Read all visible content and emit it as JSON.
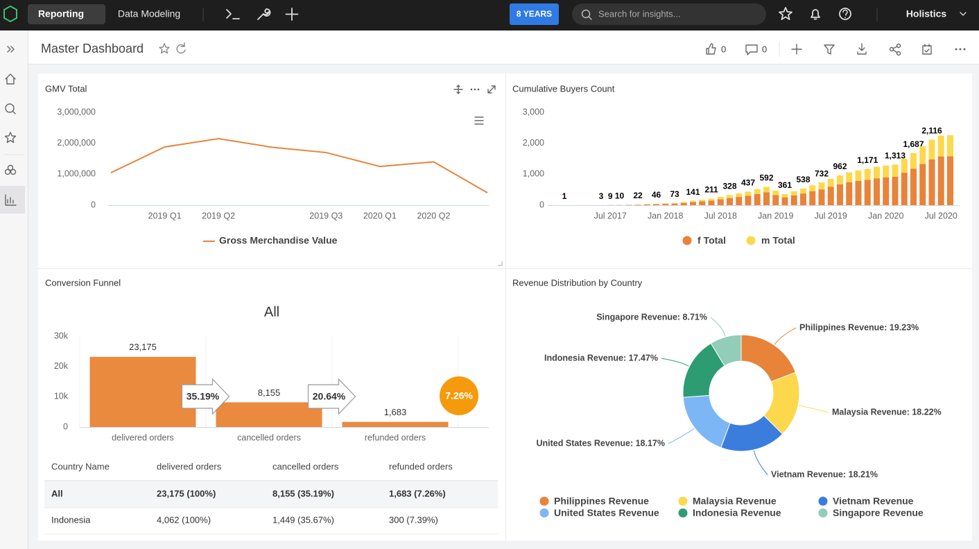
{
  "nav": {
    "tabs": [
      "Reporting",
      "Data Modeling"
    ],
    "badge": "8 YEARS",
    "search_placeholder": "Search for insights...",
    "org": "Holistics"
  },
  "header": {
    "title": "Master Dashboard",
    "likes": 0,
    "comments": 0
  },
  "chart_data": [
    {
      "type": "line",
      "title": "GMV Total",
      "categories": [
        null,
        "2019 Q1",
        "2019 Q2",
        null,
        "2019 Q3",
        "2020 Q1",
        "2020 Q2",
        null
      ],
      "series": [
        {
          "name": "Gross Merchandise Value",
          "color": "#e8833a",
          "values": [
            1050000,
            1880000,
            2150000,
            1870000,
            1700000,
            1250000,
            1400000,
            400000
          ]
        }
      ],
      "ylim": [
        0,
        3000000
      ],
      "yticks": [
        0,
        {
          "value": 1000000,
          "label": "1,000,000"
        },
        {
          "value": 2000000,
          "label": "2,000,000"
        },
        {
          "value": 3000000,
          "label": "3,000,000"
        }
      ],
      "grid": false
    },
    {
      "type": "bar",
      "stacked": true,
      "title": "Cumulative Buyers Count",
      "categories": [
        null,
        null,
        null,
        null,
        null,
        "Jul 2017",
        null,
        null,
        null,
        null,
        null,
        "Jan 2018",
        null,
        null,
        null,
        null,
        null,
        "Jul 2018",
        null,
        null,
        null,
        null,
        null,
        "Jan 2019",
        null,
        null,
        null,
        null,
        null,
        "Jul 2019",
        null,
        null,
        null,
        null,
        null,
        "Jan 2020",
        null,
        null,
        null,
        null,
        null,
        "Jul 2020",
        null
      ],
      "series": [
        {
          "name": "f Total",
          "color": "#e8833a",
          "values": [
            1,
            1,
            1,
            1,
            2,
            6,
            7,
            10,
            15,
            23,
            32,
            42,
            51,
            73,
            99,
            122,
            148,
            189,
            230,
            266,
            306,
            360,
            414,
            329,
            253,
            315,
            377,
            448,
            512,
            595,
            673,
            742,
            784,
            820,
            868,
            896,
            919,
            1050,
            1181,
            1330,
            1481,
            1575,
            1582
          ]
        },
        {
          "name": "m Total",
          "color": "#fdd84d",
          "values": [
            0,
            0,
            1,
            1,
            1,
            3,
            3,
            5,
            7,
            10,
            14,
            18,
            22,
            32,
            42,
            53,
            63,
            81,
            98,
            114,
            131,
            155,
            178,
            141,
            108,
            135,
            161,
            192,
            220,
            255,
            289,
            318,
            336,
            351,
            372,
            384,
            394,
            450,
            506,
            570,
            635,
            675,
            678
          ]
        }
      ],
      "stack_labels": [
        "1",
        null,
        null,
        null,
        "3",
        "9",
        "10",
        null,
        "22",
        null,
        "46",
        null,
        "73",
        null,
        "141",
        null,
        "211",
        null,
        "328",
        null,
        "437",
        null,
        "592",
        null,
        "361",
        null,
        "538",
        null,
        "732",
        null,
        "962",
        null,
        null,
        "1,171",
        null,
        null,
        "1,313",
        null,
        "1,687",
        null,
        "2,116",
        null,
        null
      ],
      "ylim": [
        0,
        3000
      ],
      "yticks": [
        0,
        {
          "value": 1000,
          "label": "1,000"
        },
        {
          "value": 2000,
          "label": "2,000"
        },
        {
          "value": 3000,
          "label": "3,000"
        }
      ],
      "grid": false
    },
    {
      "type": "bar",
      "title": "Conversion Funnel",
      "subtitle": "All",
      "categories": [
        "delivered orders",
        "cancelled orders",
        "refunded orders"
      ],
      "values": [
        23175,
        8155,
        1683
      ],
      "value_labels": [
        "23,175",
        "8,155",
        "1,683"
      ],
      "conversion_labels": [
        "35.19%",
        "20.64%",
        "7.26%"
      ],
      "color": "#ea8a3e",
      "ylim": [
        0,
        30000
      ],
      "yticks": [
        0,
        {
          "value": 10000,
          "label": "10k"
        },
        {
          "value": 20000,
          "label": "20k"
        },
        {
          "value": 30000,
          "label": "30k"
        }
      ],
      "grid": false
    },
    {
      "type": "pie",
      "donut": true,
      "title": "Revenue Distribution by Country",
      "categories": [
        "Philippines Revenue",
        "Malaysia Revenue",
        "Vietnam Revenue",
        "United States Revenue",
        "Indonesia Revenue",
        "Singapore Revenue"
      ],
      "values": [
        19.23,
        18.22,
        18.21,
        18.17,
        17.47,
        8.71
      ],
      "value_labels": [
        "Philippines Revenue: 19.23%",
        "Malaysia Revenue: 18.22%",
        "Vietnam Revenue: 18.21%",
        "United States Revenue: 18.17%",
        "Indonesia Revenue: 17.47%",
        "Singapore Revenue: 8.71%"
      ],
      "colors": [
        "#e8833a",
        "#fdd84d",
        "#3b7ddd",
        "#7db6f5",
        "#2e9c72",
        "#91cdb8"
      ]
    }
  ],
  "table": {
    "columns": [
      "Country Name",
      "delivered orders",
      "cancelled orders",
      "refunded orders"
    ],
    "rows": [
      [
        "All",
        "23,175 (100%)",
        "8,155 (35.19%)",
        "1,683 (7.26%)"
      ],
      [
        "Indonesia",
        "4,062 (100%)",
        "1,449 (35.67%)",
        "300 (7.39%)"
      ]
    ]
  }
}
